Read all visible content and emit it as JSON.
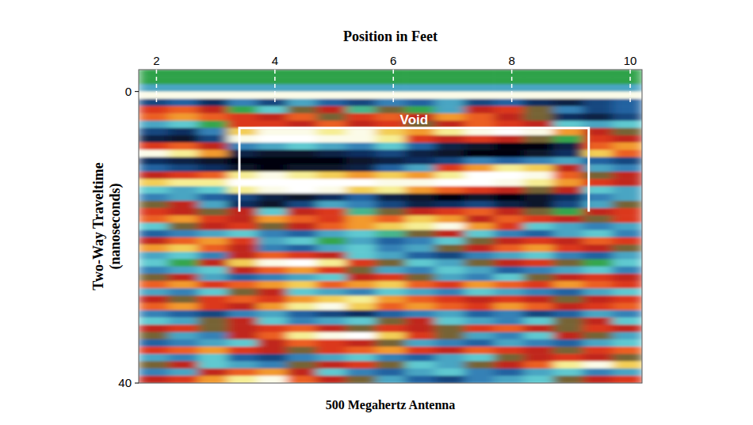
{
  "chart_data": {
    "type": "heatmap",
    "x_label": "Position in Feet",
    "y_label": "Two-Way Traveltime (nanoseconds)",
    "caption": "500 Megahertz Antenna",
    "xlim": [
      1.7,
      10.2
    ],
    "ylim": [
      -3,
      40
    ],
    "xticks": [
      2,
      4,
      6,
      8,
      10
    ],
    "yticks": [
      0,
      40
    ],
    "zlim": [
      -1,
      1
    ],
    "x": [
      1.7,
      2.2,
      2.7,
      3.2,
      3.7,
      4.2,
      4.7,
      5.2,
      5.7,
      6.2,
      6.7,
      7.2,
      7.7,
      8.2,
      8.7,
      9.2,
      9.7,
      10.2
    ],
    "y": [
      -3,
      -2,
      -1,
      0,
      1,
      2,
      3,
      4,
      5,
      6,
      7,
      8,
      9,
      10,
      11,
      12,
      13,
      14,
      15,
      16,
      17,
      18,
      19,
      20,
      21,
      22,
      23,
      24,
      25,
      26,
      27,
      28,
      29,
      30,
      31,
      32,
      33,
      34,
      35,
      36,
      37,
      38,
      39,
      40
    ],
    "cells": [
      [
        0,
        0,
        0,
        0,
        0,
        0,
        0,
        0,
        0,
        0,
        0,
        0,
        0,
        0,
        0,
        0,
        0
      ],
      [
        0,
        0,
        0,
        0,
        0,
        0,
        0,
        0,
        0,
        0,
        0,
        0,
        0,
        0,
        0,
        0,
        0
      ],
      [
        -0.3,
        -0.3,
        -0.3,
        -0.3,
        -0.3,
        -0.3,
        -0.3,
        -0.3,
        -0.3,
        -0.3,
        -0.3,
        -0.3,
        -0.3,
        -0.3,
        -0.3,
        -0.3,
        -0.3
      ],
      [
        0.9,
        0.9,
        0.9,
        0.9,
        0.9,
        0.9,
        0.9,
        0.9,
        0.9,
        0.9,
        0.9,
        0.9,
        0.9,
        0.9,
        0.9,
        0.9,
        0.9
      ],
      [
        -0.6,
        -0.5,
        -0.7,
        -0.4,
        -0.6,
        -0.3,
        -0.5,
        -0.6,
        -0.4,
        -0.5,
        -0.3,
        -0.6,
        -0.5,
        -0.7,
        -0.8,
        -0.6,
        -0.5
      ],
      [
        0.4,
        0.5,
        0.3,
        0.1,
        -0.2,
        0.2,
        0.3,
        -0.1,
        0.2,
        0.1,
        -0.3,
        0.3,
        0.4,
        0.2,
        -0.4,
        -0.6,
        -0.5
      ],
      [
        0.5,
        0.6,
        0.5,
        0.4,
        0.3,
        0.5,
        0.2,
        0.4,
        0.5,
        0.3,
        0.6,
        0.5,
        0.3,
        0.2,
        -0.7,
        -0.8,
        -0.6
      ],
      [
        -0.3,
        -0.2,
        0.1,
        0.4,
        0.4,
        0.3,
        0.5,
        0.3,
        0.4,
        0.2,
        0.3,
        0.5,
        0.4,
        0.3,
        -0.2,
        -0.3,
        -0.2
      ],
      [
        -0.6,
        -0.7,
        -0.4,
        0.7,
        0.9,
        0.9,
        0.8,
        0.9,
        0.7,
        0.6,
        0.8,
        0.9,
        1.0,
        0.9,
        0.6,
        0.3,
        0.2
      ],
      [
        -0.8,
        -0.9,
        -0.6,
        0.9,
        1.0,
        1.0,
        0.9,
        0.9,
        0.8,
        0.4,
        0.3,
        0.4,
        0.3,
        0.2,
        0.1,
        0.4,
        0.3
      ],
      [
        0.4,
        0.5,
        0.3,
        -0.4,
        -0.3,
        -0.2,
        -0.3,
        -0.4,
        -0.2,
        -0.5,
        -0.8,
        -0.9,
        -1.0,
        -1.0,
        -0.8,
        0.5,
        0.6
      ],
      [
        0.9,
        0.8,
        0.6,
        -0.8,
        -0.9,
        -0.9,
        -0.8,
        -0.7,
        -0.6,
        -0.8,
        -0.9,
        -1.0,
        -1.0,
        -0.9,
        -0.7,
        0.7,
        0.5
      ],
      [
        -0.7,
        -0.8,
        -0.9,
        -1.0,
        -1.0,
        -1.0,
        -1.0,
        -0.9,
        -0.8,
        -0.7,
        -0.6,
        -0.4,
        -0.5,
        -0.4,
        -0.3,
        -0.5,
        -0.6
      ],
      [
        -0.5,
        -0.6,
        -0.7,
        -0.9,
        -1.0,
        -0.9,
        -0.9,
        -0.8,
        -0.5,
        -0.3,
        0.4,
        0.6,
        0.8,
        0.7,
        0.3,
        -0.3,
        -0.4
      ],
      [
        0.3,
        0.4,
        0.5,
        0.8,
        0.9,
        0.8,
        0.7,
        0.6,
        0.7,
        0.6,
        0.8,
        1.0,
        1.0,
        0.9,
        0.5,
        0.2,
        0.3
      ],
      [
        0.7,
        0.8,
        0.8,
        1.0,
        1.0,
        1.0,
        1.0,
        1.0,
        0.9,
        0.9,
        1.0,
        1.0,
        0.9,
        0.8,
        0.6,
        0.4,
        0.3
      ],
      [
        -0.2,
        -0.3,
        -0.2,
        0.8,
        0.9,
        1.0,
        0.9,
        0.7,
        0.8,
        0.6,
        0.5,
        0.4,
        0.3,
        0.2,
        0.3,
        -0.2,
        -0.3
      ],
      [
        -0.4,
        -0.3,
        -0.5,
        -0.6,
        -0.8,
        -0.9,
        -0.7,
        -0.5,
        -0.8,
        -0.9,
        -1.0,
        -0.9,
        -1.0,
        -0.9,
        -0.7,
        -0.4,
        -0.3
      ],
      [
        0.2,
        0.3,
        -0.3,
        -0.7,
        -0.9,
        -0.6,
        -0.3,
        -0.4,
        -0.6,
        -0.8,
        -0.7,
        -0.6,
        -0.8,
        -0.9,
        -0.6,
        -0.3,
        0.2
      ],
      [
        0.4,
        0.3,
        0.2,
        0.3,
        -0.2,
        0.3,
        0.4,
        -0.1,
        0.2,
        0.3,
        0.4,
        0.5,
        0.3,
        0.2,
        0.1,
        0.3,
        0.4
      ],
      [
        0.5,
        0.6,
        0.4,
        0.3,
        0.6,
        0.5,
        0.4,
        0.6,
        0.5,
        0.7,
        0.6,
        0.3,
        0.5,
        0.4,
        0.3,
        0.2,
        0.4
      ],
      [
        -0.2,
        0.2,
        0.3,
        0.4,
        0.2,
        0.3,
        0.5,
        0.6,
        0.7,
        0.8,
        0.9,
        0.6,
        0.4,
        -0.2,
        -0.3,
        -0.4,
        -0.3
      ],
      [
        -0.5,
        -0.4,
        -0.3,
        -0.2,
        -0.4,
        -0.5,
        -0.3,
        -0.2,
        -0.1,
        0.2,
        0.3,
        -0.2,
        -0.4,
        -0.5,
        -0.3,
        -0.2,
        -0.4
      ],
      [
        0.3,
        0.5,
        0.6,
        0.4,
        -0.3,
        -0.2,
        0.1,
        -0.3,
        -0.5,
        -0.4,
        -0.2,
        0.2,
        0.3,
        0.4,
        0.3,
        0.5,
        0.4
      ],
      [
        0.6,
        0.7,
        0.5,
        0.3,
        -0.4,
        -0.5,
        -0.3,
        -0.2,
        -0.4,
        -0.3,
        0.2,
        0.3,
        0.5,
        0.6,
        0.4,
        0.3,
        0.2
      ],
      [
        -0.3,
        -0.2,
        -0.4,
        0.3,
        0.5,
        0.4,
        0.3,
        -0.2,
        -0.3,
        -0.5,
        -0.6,
        -0.4,
        -0.3,
        -0.2,
        -0.4,
        -0.5,
        -0.3
      ],
      [
        -0.2,
        0.1,
        0.3,
        0.7,
        0.9,
        1.0,
        0.8,
        0.4,
        0.2,
        -0.2,
        -0.3,
        0.2,
        0.3,
        0.4,
        0.2,
        0.1,
        -0.2
      ],
      [
        -0.4,
        -0.3,
        -0.2,
        0.3,
        0.5,
        0.6,
        0.4,
        0.2,
        -0.3,
        -0.4,
        -0.2,
        -0.3,
        -0.5,
        -0.4,
        -0.3,
        -0.2,
        -0.4
      ],
      [
        0.2,
        0.3,
        -0.3,
        -0.5,
        -0.4,
        -0.3,
        -0.2,
        0.3,
        0.4,
        0.2,
        -0.3,
        -0.4,
        -0.2,
        0.2,
        0.3,
        0.4,
        0.3
      ],
      [
        0.5,
        0.6,
        0.4,
        0.5,
        0.6,
        0.7,
        0.5,
        0.6,
        0.7,
        0.5,
        0.4,
        0.6,
        0.5,
        0.4,
        0.6,
        0.5,
        0.4
      ],
      [
        -0.3,
        -0.4,
        -0.2,
        0.2,
        0.3,
        -0.2,
        -0.3,
        -0.4,
        -0.2,
        -0.3,
        -0.4,
        -0.2,
        -0.3,
        -0.4,
        -0.5,
        -0.3,
        -0.2
      ],
      [
        0.3,
        0.2,
        0.4,
        0.5,
        0.4,
        0.6,
        0.7,
        0.8,
        0.6,
        0.5,
        0.4,
        0.3,
        0.4,
        0.3,
        0.2,
        0.3,
        0.4
      ],
      [
        0.5,
        0.6,
        0.4,
        0.3,
        0.6,
        0.8,
        0.9,
        0.7,
        0.5,
        0.6,
        0.5,
        0.4,
        0.6,
        0.5,
        0.3,
        0.4,
        0.5
      ],
      [
        -0.4,
        -0.5,
        -0.6,
        -0.4,
        -0.3,
        -0.5,
        -0.6,
        -0.7,
        -0.5,
        -0.4,
        -0.3,
        -0.5,
        -0.4,
        -0.6,
        -0.5,
        -0.3,
        -0.4
      ],
      [
        -0.2,
        -0.3,
        0.2,
        0.3,
        -0.2,
        -0.4,
        -0.3,
        -0.2,
        0.2,
        0.3,
        -0.2,
        -0.3,
        -0.4,
        -0.2,
        0.2,
        0.3,
        -0.2
      ],
      [
        0.3,
        0.4,
        0.2,
        0.3,
        0.4,
        0.5,
        0.3,
        0.2,
        0.4,
        0.3,
        0.2,
        0.4,
        0.5,
        0.3,
        0.2,
        0.4,
        0.3
      ],
      [
        0.2,
        -0.3,
        -0.4,
        0.3,
        0.5,
        0.8,
        0.9,
        1.0,
        0.7,
        0.4,
        0.2,
        -0.3,
        -0.4,
        -0.2,
        0.3,
        0.2,
        -0.3
      ],
      [
        -0.5,
        -0.4,
        -0.3,
        -0.2,
        0.3,
        0.5,
        0.4,
        0.3,
        0.2,
        -0.3,
        -0.4,
        -0.5,
        -0.3,
        -0.4,
        -0.5,
        -0.3,
        -0.2
      ],
      [
        0.4,
        0.5,
        0.6,
        0.4,
        0.3,
        0.2,
        0.4,
        0.5,
        0.6,
        0.4,
        0.3,
        0.5,
        0.4,
        0.3,
        0.2,
        0.4,
        0.5
      ],
      [
        -0.3,
        -0.4,
        -0.2,
        -0.5,
        -0.6,
        -0.4,
        -0.3,
        -0.2,
        -0.4,
        -0.5,
        -0.3,
        -0.2,
        0.2,
        0.3,
        0.4,
        0.3,
        0.2
      ],
      [
        0.2,
        0.3,
        -0.2,
        -0.3,
        -0.4,
        0.2,
        0.3,
        0.4,
        0.2,
        -0.2,
        -0.3,
        0.2,
        0.3,
        0.5,
        0.8,
        0.9,
        0.7
      ],
      [
        -0.4,
        -0.3,
        0.3,
        0.5,
        0.6,
        0.3,
        -0.2,
        -0.4,
        -0.5,
        -0.3,
        -0.2,
        -0.4,
        -0.5,
        -0.3,
        -0.2,
        -0.4,
        -0.3
      ],
      [
        0.3,
        0.4,
        0.6,
        0.8,
        0.9,
        0.5,
        0.3,
        0.2,
        -0.3,
        -0.5,
        -0.6,
        -0.4,
        -0.3,
        -0.2,
        0.2,
        0.3,
        0.4
      ]
    ],
    "annotations": [
      {
        "text": "Void",
        "x": [
          3.4,
          9.3
        ],
        "y": [
          5,
          16.5
        ]
      }
    ]
  }
}
